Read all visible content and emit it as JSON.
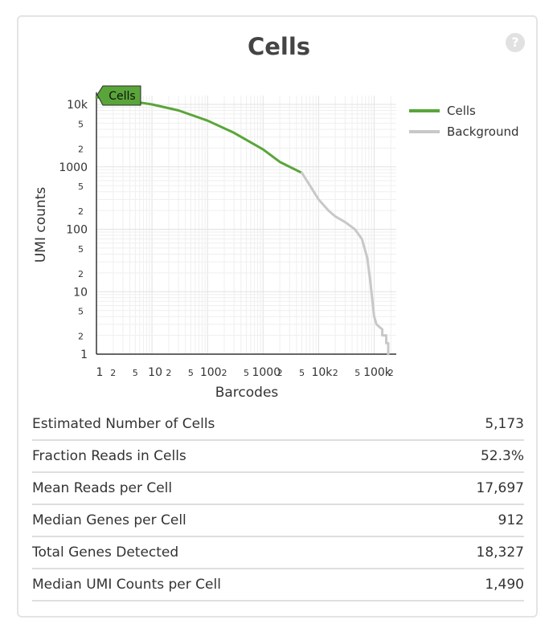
{
  "card": {
    "title": "Cells",
    "help_glyph": "?"
  },
  "chart_data": {
    "type": "line",
    "title": "",
    "xlabel": "Barcodes",
    "ylabel": "UMI counts",
    "xscale": "log",
    "yscale": "log",
    "xlim": [
      1,
      250000
    ],
    "ylim": [
      1,
      10000
    ],
    "grid": true,
    "legend_position": "top-right",
    "x_tick_labels": [
      "1",
      "2",
      "5",
      "10",
      "2",
      "5",
      "100",
      "2",
      "5",
      "1000",
      "2",
      "5",
      "10k",
      "2",
      "5",
      "100k",
      "2"
    ],
    "y_tick_labels": [
      "10k",
      "5",
      "2",
      "1000",
      "5",
      "2",
      "100",
      "5",
      "2",
      "10",
      "5",
      "2",
      "1"
    ],
    "series": [
      {
        "name": "Cells",
        "color": "#5aa53a",
        "x": [
          1,
          5,
          10,
          30,
          100,
          300,
          1000,
          2000,
          5000
        ],
        "y": [
          13000,
          11000,
          10000,
          8000,
          5500,
          3500,
          1900,
          1200,
          800
        ]
      },
      {
        "name": "Background",
        "color": "#c8c8c8",
        "x": [
          5000,
          7000,
          10000,
          15000,
          20000,
          30000,
          45000,
          60000,
          75000,
          85000,
          95000,
          100000,
          110000,
          120000,
          140000,
          140000,
          165000,
          165000,
          180000,
          180000,
          250000
        ],
        "y": [
          800,
          500,
          300,
          200,
          160,
          130,
          100,
          70,
          35,
          15,
          6,
          4,
          3,
          2.8,
          2.5,
          2,
          2,
          1.5,
          1.5,
          1,
          1
        ]
      }
    ],
    "annotations": [
      {
        "text": "Cells",
        "x": 1,
        "y": 13000
      }
    ]
  },
  "metrics": [
    {
      "label": "Estimated Number of Cells",
      "value": "5,173"
    },
    {
      "label": "Fraction Reads in Cells",
      "value": "52.3%"
    },
    {
      "label": "Mean Reads per Cell",
      "value": "17,697"
    },
    {
      "label": "Median Genes per Cell",
      "value": "912"
    },
    {
      "label": "Total Genes Detected",
      "value": "18,327"
    },
    {
      "label": "Median UMI Counts per Cell",
      "value": "1,490"
    }
  ]
}
